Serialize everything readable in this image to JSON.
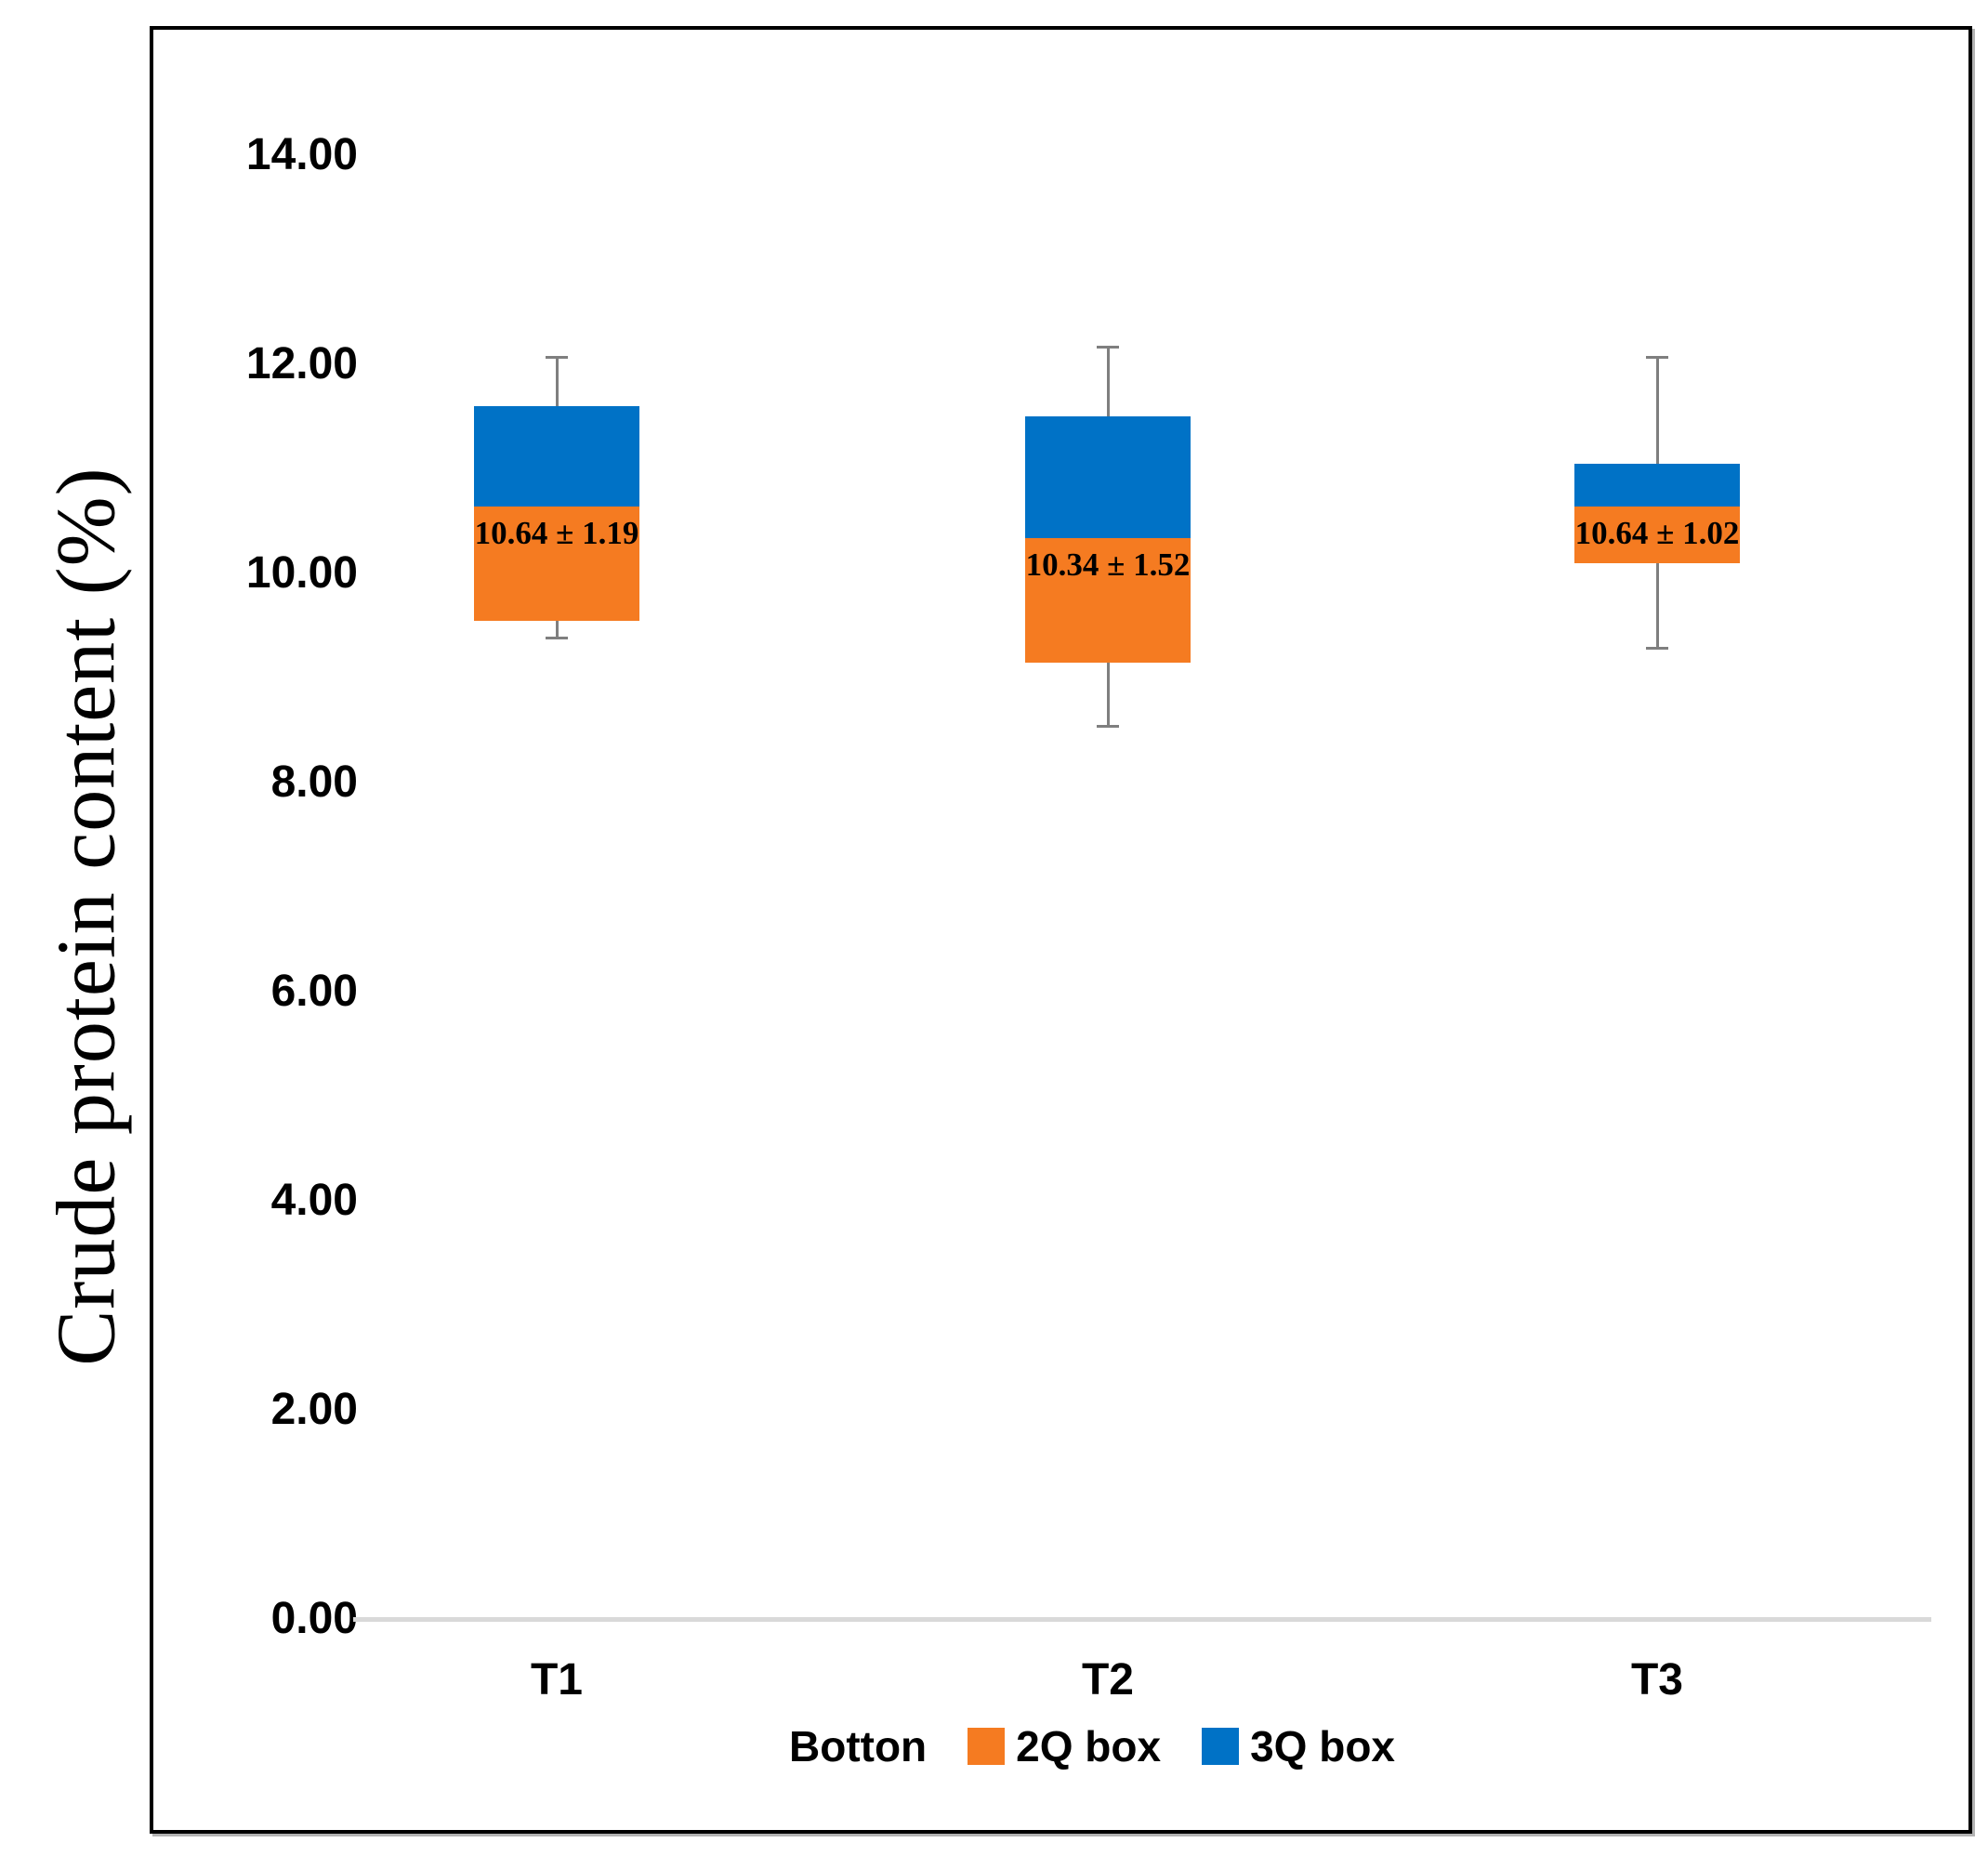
{
  "chart_data": {
    "type": "boxplot",
    "title": "",
    "xlabel": "",
    "ylabel": "Crude protein content (%)",
    "ylim": [
      0,
      14
    ],
    "ytick_labels": [
      "0.00",
      "2.00",
      "4.00",
      "6.00",
      "8.00",
      "10.00",
      "12.00",
      "14.00"
    ],
    "grid": false,
    "categories": [
      "T1",
      "T2",
      "T3"
    ],
    "boxes": [
      {
        "category": "T1",
        "whisker_low": 9.4,
        "q1": 9.55,
        "median": 10.64,
        "q3": 11.6,
        "whisker_high": 12.05,
        "label": "10.64 ± 1.19"
      },
      {
        "category": "T2",
        "whisker_low": 8.55,
        "q1": 9.15,
        "median": 10.34,
        "q3": 11.5,
        "whisker_high": 12.15,
        "label": "10.34 ± 1.52"
      },
      {
        "category": "T3",
        "whisker_low": 9.3,
        "q1": 10.1,
        "median": 10.64,
        "q3": 11.05,
        "whisker_high": 12.05,
        "label": "10.64 ± 1.02"
      }
    ],
    "legend": {
      "position": "bottom",
      "items": [
        {
          "label": "Botton",
          "swatch": null
        },
        {
          "label": "2Q box",
          "swatch": "#F57B21"
        },
        {
          "label": "3Q box",
          "swatch": "#0072C6"
        }
      ]
    },
    "colors": {
      "q2_box": "#F57B21",
      "q3_box": "#0072C6",
      "whisker": "#7F7F7F",
      "axis_line": "#D9D9D9",
      "border": "#000000",
      "label_text": "#000000"
    }
  }
}
